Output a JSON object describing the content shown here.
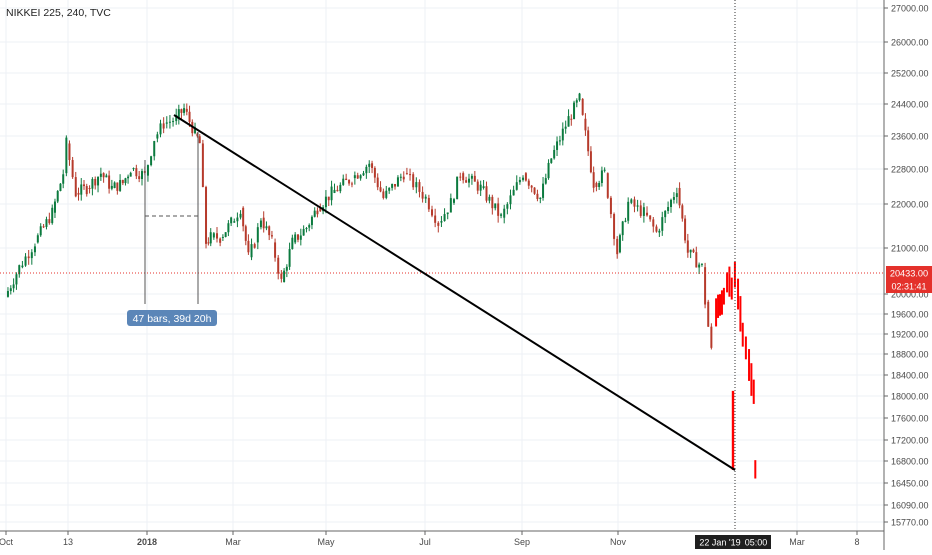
{
  "symbol_title": "NIKKEI 225, 240, TVC",
  "colors": {
    "background": "#ffffff",
    "grid": "#eef1f5",
    "up": "#0b7a3e",
    "down": "#b63a2b",
    "forecast": "#ff0000",
    "price_line": "#e4312b",
    "trend_line": "#000000",
    "measure_box": "#5b86b8",
    "text": "#4a4a4a"
  },
  "price_axis": {
    "ticks": [
      "27000.00",
      "26000.00",
      "25200.00",
      "24400.00",
      "23600.00",
      "22800.00",
      "22000.00",
      "21000.00",
      "20000.00",
      "19600.00",
      "19200.00",
      "18800.00",
      "18400.00",
      "18000.00",
      "17600.00",
      "17200.00",
      "16800.00",
      "16450.00",
      "16090.00",
      "15770.00"
    ],
    "current_price_label": "20433.00",
    "countdown_label": "02:31:41"
  },
  "time_axis": {
    "ticks": [
      "Oct",
      "13",
      "2018",
      "Mar",
      "May",
      "Jul",
      "Sep",
      "Nov",
      "Mar",
      "8"
    ],
    "cursor_date_label": "22 Jan '19",
    "cursor_time_label": "05:00"
  },
  "measure_label": "47 bars, 39d 20h",
  "chart_data": {
    "type": "candlestick",
    "title": "NIKKEI 225, 240, TVC",
    "x_range": [
      "2017-09-29",
      "2019-04-14"
    ],
    "ylim": [
      15600,
      27200
    ],
    "last_price": 20433.0,
    "series": [
      {
        "kind": "ohlc_close_path",
        "points": [
          [
            "2017-10-01",
            20300
          ],
          [
            "2017-10-10",
            20900
          ],
          [
            "2017-10-20",
            21400
          ],
          [
            "2017-10-31",
            22000
          ],
          [
            "2017-11-07",
            22800
          ],
          [
            "2017-11-09",
            23400
          ],
          [
            "2017-11-15",
            22400
          ],
          [
            "2017-11-22",
            22500
          ],
          [
            "2017-12-01",
            22800
          ],
          [
            "2017-12-08",
            22500
          ],
          [
            "2017-12-15",
            22600
          ],
          [
            "2017-12-20",
            22900
          ],
          [
            "2017-12-29",
            22750
          ],
          [
            "2018-01-04",
            23500
          ],
          [
            "2018-01-10",
            23800
          ],
          [
            "2018-01-18",
            23900
          ],
          [
            "2018-01-23",
            24100
          ],
          [
            "2018-01-30",
            23600
          ],
          [
            "2018-02-02",
            23400
          ],
          [
            "2018-02-06",
            21400
          ],
          [
            "2018-02-09",
            21500
          ],
          [
            "2018-02-15",
            21500
          ],
          [
            "2018-02-22",
            21800
          ],
          [
            "2018-02-28",
            22100
          ],
          [
            "2018-03-05",
            21100
          ],
          [
            "2018-03-09",
            21400
          ],
          [
            "2018-03-13",
            21900
          ],
          [
            "2018-03-20",
            21400
          ],
          [
            "2018-03-26",
            20600
          ],
          [
            "2018-04-02",
            21400
          ],
          [
            "2018-04-11",
            21700
          ],
          [
            "2018-04-18",
            22100
          ],
          [
            "2018-04-27",
            22400
          ],
          [
            "2018-05-10",
            22700
          ],
          [
            "2018-05-21",
            23000
          ],
          [
            "2018-05-30",
            22300
          ],
          [
            "2018-06-12",
            22800
          ],
          [
            "2018-06-26",
            22300
          ],
          [
            "2018-07-04",
            21800
          ],
          [
            "2018-07-12",
            22200
          ],
          [
            "2018-07-18",
            22800
          ],
          [
            "2018-07-31",
            22500
          ],
          [
            "2018-08-13",
            21900
          ],
          [
            "2018-08-27",
            22800
          ],
          [
            "2018-09-07",
            22300
          ],
          [
            "2018-09-14",
            23100
          ],
          [
            "2018-09-25",
            23900
          ],
          [
            "2018-10-02",
            24300
          ],
          [
            "2018-10-04",
            23900
          ],
          [
            "2018-10-11",
            22600
          ],
          [
            "2018-10-18",
            22800
          ],
          [
            "2018-10-26",
            21200
          ],
          [
            "2018-11-02",
            22200
          ],
          [
            "2018-11-12",
            22000
          ],
          [
            "2018-11-20",
            21600
          ],
          [
            "2018-12-03",
            22500
          ],
          [
            "2018-12-10",
            21200
          ],
          [
            "2018-12-19",
            20900
          ],
          [
            "2018-12-21",
            20200
          ],
          [
            "2018-12-25",
            19200
          ]
        ]
      },
      {
        "kind": "projected_bars_red",
        "points": [
          [
            "2018-12-26",
            19700
          ],
          [
            "2018-12-28",
            20000
          ],
          [
            "2019-01-02",
            20300
          ],
          [
            "2019-01-04",
            20600
          ],
          [
            "2019-01-07",
            20500
          ],
          [
            "2019-01-09",
            20700
          ],
          [
            "2019-01-11",
            20300
          ],
          [
            "2019-01-14",
            19600
          ],
          [
            "2019-01-16",
            19200
          ],
          [
            "2019-01-18",
            18900
          ],
          [
            "2019-01-21",
            18400
          ],
          [
            "2019-01-22",
            16800
          ]
        ]
      }
    ],
    "drawings": {
      "trend_line": [
        [
          "2018-01-22",
          24150
        ],
        [
          "2019-01-22",
          16800
        ]
      ],
      "date_range_measure": {
        "from": "2018-01-01",
        "to": "2018-02-09",
        "label": "47 bars, 39d 20h"
      },
      "price_line": 20433.0
    }
  }
}
